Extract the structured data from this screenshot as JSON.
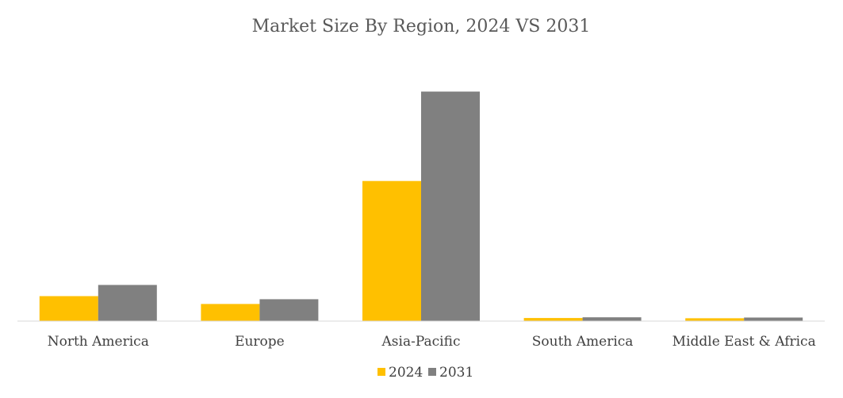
{
  "chart_data": {
    "type": "bar",
    "title": "Market Size By Region, 2024 VS 2031",
    "categories": [
      "North America",
      "Europe",
      "Asia-Pacific",
      "South America",
      "Middle East & Africa"
    ],
    "series": [
      {
        "name": "2024",
        "color": "#FFC000",
        "values": [
          10.5,
          7.2,
          58.9,
          1.3,
          1.2
        ]
      },
      {
        "name": "2031",
        "color": "#808080",
        "values": [
          15.2,
          9.2,
          96.5,
          1.6,
          1.5
        ]
      }
    ],
    "xlabel": "",
    "ylabel": "",
    "ylim": [
      0,
      100
    ],
    "grid": false,
    "legend_position": "bottom"
  }
}
